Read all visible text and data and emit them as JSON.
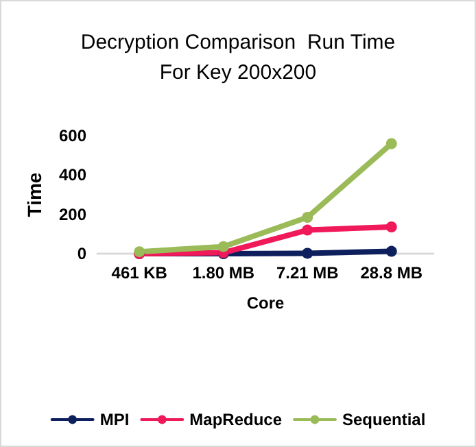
{
  "chart_data": {
    "type": "line",
    "title": "Decryption Comparison  Run Time\nFor Key 200x200",
    "xlabel": "Core",
    "ylabel": "Time",
    "categories": [
      "461 KB",
      "1.80 MB",
      "7.21 MB",
      "28.8 MB"
    ],
    "series": [
      {
        "name": "MPI",
        "color": "#0d1f5c",
        "values": [
          0,
          0,
          2,
          12
        ]
      },
      {
        "name": "MapReduce",
        "color": "#f0195a",
        "values": [
          0,
          5,
          120,
          136
        ]
      },
      {
        "name": "Sequential",
        "color": "#9bbb59",
        "values": [
          10,
          36,
          185,
          560
        ]
      }
    ],
    "ylim": [
      0,
      600
    ],
    "yticks": [
      0,
      200,
      400,
      600
    ],
    "grid": false,
    "legend": "bottom",
    "marker": "circle",
    "line_style": "solid"
  }
}
